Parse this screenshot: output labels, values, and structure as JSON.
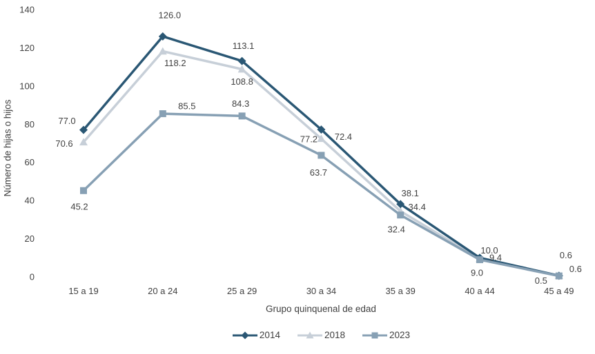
{
  "chart_data": {
    "type": "line",
    "title": "",
    "categories": [
      "15 a 19",
      "20 a 24",
      "25 a 29",
      "30 a 34",
      "35 a 39",
      "40 a 44",
      "45 a 49"
    ],
    "series": [
      {
        "name": "2014",
        "marker": "diamond",
        "color": "#2A5774",
        "values": [
          77.0,
          126.0,
          113.1,
          77.2,
          38.1,
          10.0,
          0.6
        ]
      },
      {
        "name": "2018",
        "marker": "triangle",
        "color": "#C7CFD8",
        "values": [
          70.6,
          118.2,
          108.8,
          72.4,
          34.4,
          9.4,
          0.6
        ]
      },
      {
        "name": "2023",
        "marker": "square",
        "color": "#87A0B4",
        "values": [
          45.2,
          85.5,
          84.3,
          63.7,
          32.4,
          9.0,
          0.5
        ]
      }
    ],
    "xlabel": "Grupo quinquenal de edad",
    "ylabel": "Número de hijas o hijos",
    "y_ticks": [
      0,
      20,
      40,
      60,
      80,
      100,
      120,
      140
    ],
    "ylim": [
      0,
      140
    ],
    "grid": false,
    "axis_lines": false,
    "legend_position": "bottom",
    "value_labels": true,
    "value_label_decimals": 1,
    "text_color": "#3f3f3f"
  }
}
